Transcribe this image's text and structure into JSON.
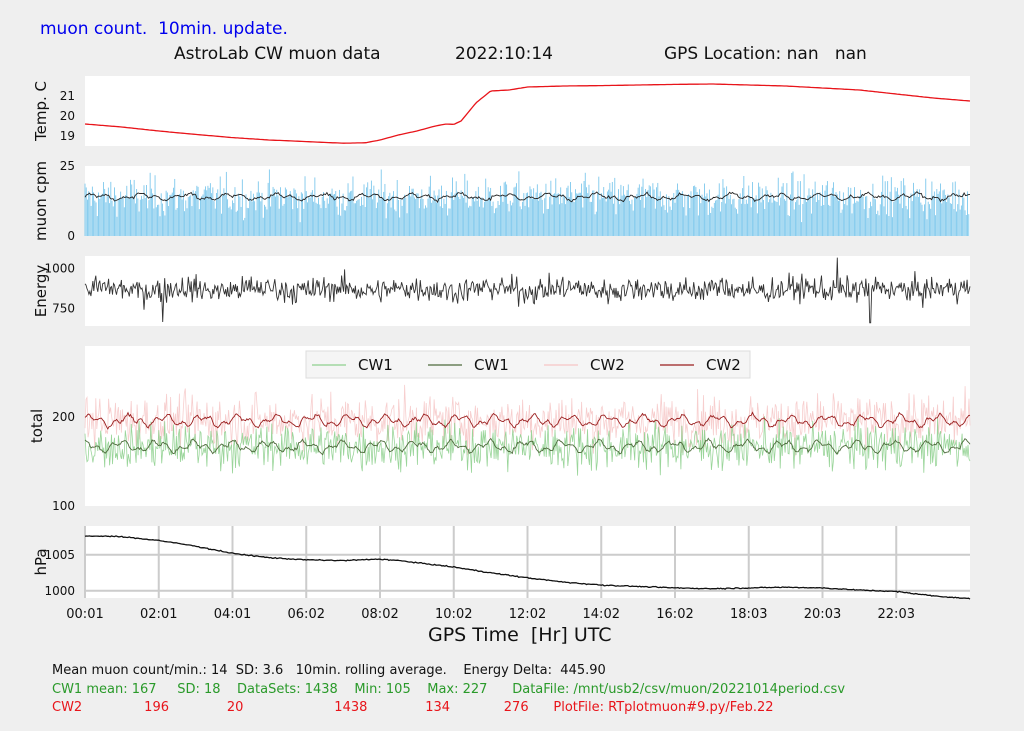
{
  "header": {
    "suptitle": "muon count.  10min. update.",
    "title_left": "AstroLab CW muon data",
    "title_date": "2022:10:14",
    "title_gps": "GPS Location: nan   nan"
  },
  "stats": {
    "line1": "Mean muon count/min.: 14  SD: 3.6   10min. rolling average.    Energy Delta:  445.90",
    "line2": "CW1 mean: 167     SD: 18    DataSets: 1438    Min: 105    Max: 227      DataFile: /mnt/usb2/csv/muon/20221014period.csv",
    "line3": "CW2               196              20                      1438              134             276      PlotFile: RTplotmuon#9.py/Feb.22"
  },
  "colors": {
    "temp_line": "#e8141a",
    "muon_bars": "#7ec8ec",
    "muon_avg": "#222222",
    "energy_line": "#333333",
    "cw1_raw": "#8fd08f",
    "cw1_avg": "#4e6b3c",
    "cw2_raw": "#f6c5c5",
    "cw2_avg": "#9a1e1e",
    "pressure_line": "#111111"
  },
  "chart_data": {
    "type": "line",
    "xlabel": "GPS Time  [Hr] UTC",
    "x_ticks": [
      "00:01",
      "02:01",
      "04:01",
      "06:02",
      "08:02",
      "10:02",
      "12:02",
      "14:02",
      "16:02",
      "18:03",
      "20:03",
      "22:03"
    ],
    "panels": [
      {
        "id": "temp",
        "ylabel": "Temp. C",
        "yticks": [
          "19",
          "20",
          "21"
        ],
        "ylim": [
          18.5,
          22.0
        ],
        "grid": false,
        "series": [
          {
            "x": [
              0.0,
              1.0,
              2.0,
              3.0,
              4.0,
              5.0,
              6.0,
              7.0,
              7.6,
              8.0,
              8.5,
              9.0,
              9.5,
              9.8,
              10.0,
              10.2,
              10.6,
              11.0,
              11.5,
              12.0,
              13.0,
              14.0,
              15.0,
              16.0,
              17.0,
              18.0,
              19.0,
              20.0,
              21.0,
              22.0,
              23.0,
              24.0
            ],
            "y": [
              19.6,
              19.45,
              19.25,
              19.08,
              18.92,
              18.8,
              18.72,
              18.64,
              18.66,
              18.8,
              19.05,
              19.25,
              19.5,
              19.6,
              19.58,
              19.75,
              20.65,
              21.25,
              21.3,
              21.45,
              21.5,
              21.52,
              21.55,
              21.58,
              21.6,
              21.55,
              21.5,
              21.4,
              21.3,
              21.1,
              20.9,
              20.75
            ]
          }
        ]
      },
      {
        "id": "muon",
        "ylabel": "muon cpm",
        "yticks": [
          "0",
          "25"
        ],
        "ylim": [
          0,
          25
        ],
        "grid": false,
        "series": [
          {
            "name": "",
            "summary": {
              "mean": 14,
              "sd": 3.6
            }
          },
          {
            "name": "",
            "summary": {
              "mean": 14,
              "rolling": "10min"
            }
          }
        ]
      },
      {
        "id": "energy",
        "ylabel": "Energy",
        "yticks": [
          "750",
          "1000"
        ],
        "ylim": [
          640,
          1080
        ],
        "grid": false,
        "series": [
          {
            "name": "",
            "summary": {
              "mean": 870,
              "min": 660,
              "max": 1070
            }
          }
        ]
      },
      {
        "id": "total",
        "ylabel": "total",
        "yticks": [
          "100",
          "200"
        ],
        "ylim": [
          100,
          280
        ],
        "grid": false,
        "legend": [
          "CW1",
          "CW1",
          "CW2",
          "CW2"
        ],
        "legend_position": "top",
        "series": [
          {
            "name": "CW1",
            "summary": {
              "mean": 167,
              "sd": 18,
              "min": 105,
              "max": 227,
              "count": 1438
            }
          },
          {
            "name": "CW1",
            "summary": {
              "mean": 167,
              "rolling": "10min"
            }
          },
          {
            "name": "CW2",
            "summary": {
              "mean": 196,
              "sd": 20,
              "min": 134,
              "max": 276,
              "count": 1438
            }
          },
          {
            "name": "CW2",
            "summary": {
              "mean": 196,
              "rolling": "10min"
            }
          }
        ]
      },
      {
        "id": "pressure",
        "ylabel": "hPa",
        "yticks": [
          "1000",
          "1005"
        ],
        "ylim": [
          999,
          1009
        ],
        "grid": true,
        "series": [
          {
            "x": [
              0.0,
              0.5,
              1.0,
              2.0,
              3.0,
              4.0,
              5.0,
              6.0,
              7.0,
              8.0,
              8.5,
              9.0,
              10.0,
              11.0,
              12.0,
              13.0,
              14.0,
              15.0,
              16.0,
              17.0,
              18.0,
              19.0,
              20.0,
              21.0,
              22.0,
              23.0,
              24.0
            ],
            "y": [
              1007.6,
              1007.6,
              1007.5,
              1007.0,
              1006.2,
              1005.2,
              1004.6,
              1004.3,
              1004.2,
              1004.4,
              1004.2,
              1003.9,
              1003.3,
              1002.5,
              1001.8,
              1001.2,
              1000.8,
              1000.6,
              1000.4,
              1000.3,
              1000.4,
              1000.5,
              1000.4,
              1000.1,
              999.9,
              999.3,
              998.9
            ]
          }
        ]
      }
    ]
  }
}
